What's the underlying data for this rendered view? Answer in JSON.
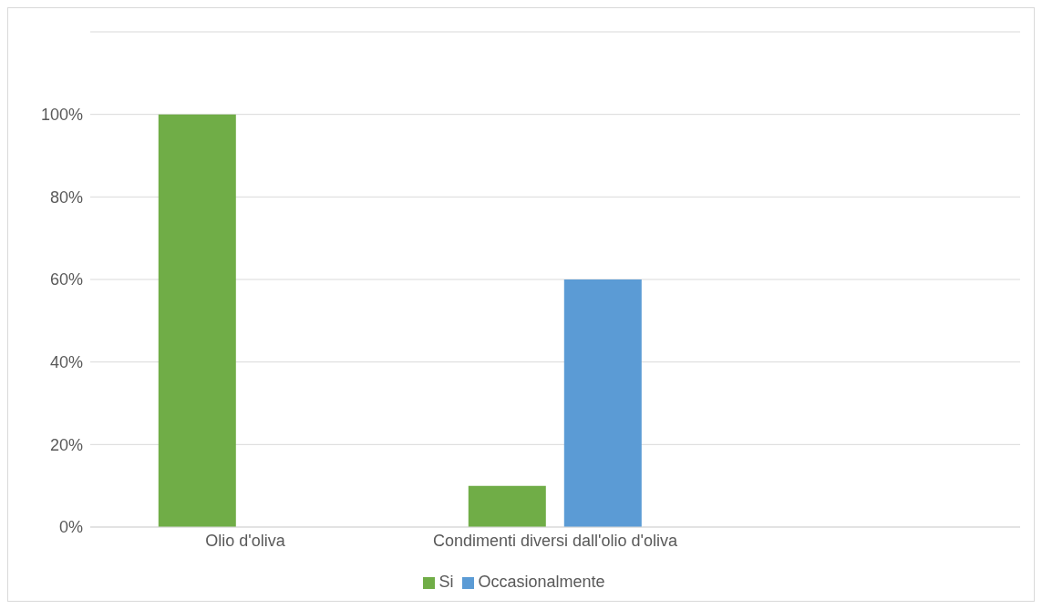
{
  "chart_data": {
    "type": "bar",
    "categories": [
      "Olio d'oliva",
      "Condimenti diversi dall'olio d'oliva",
      null
    ],
    "series": [
      {
        "name": "Si",
        "color": "#70ad47",
        "values": [
          100,
          10,
          null
        ]
      },
      {
        "name": "Occasionalmente",
        "color": "#5b9bd5",
        "values": [
          0,
          60,
          null
        ]
      }
    ],
    "ylim": [
      0,
      120
    ],
    "yticks": [
      {
        "value": 0,
        "label": "0%"
      },
      {
        "value": 20,
        "label": "20%"
      },
      {
        "value": 40,
        "label": "40%"
      },
      {
        "value": 60,
        "label": "60%"
      },
      {
        "value": 80,
        "label": "80%"
      },
      {
        "value": 100,
        "label": "100%"
      },
      {
        "value": 120,
        "label": null
      }
    ],
    "grid": "y",
    "legend": "bottom"
  }
}
